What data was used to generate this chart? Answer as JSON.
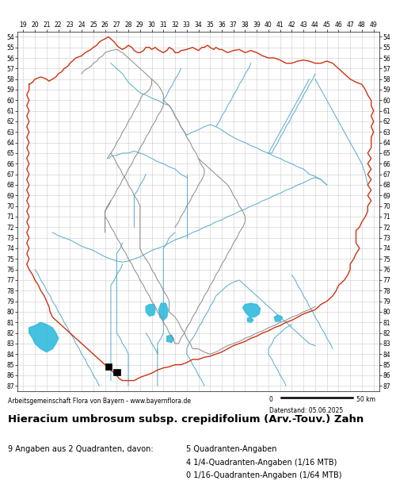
{
  "title": "Hieracium umbrosum subsp. crepidifolium (Arv.-Touv.) Zahn",
  "attribution": "Arbeitsgemeinschaft Flora von Bayern - www.bayernflora.de",
  "date_label": "Datenstand: 05.06.2025",
  "scale_label": "50 km",
  "stats_line1": "9 Angaben aus 2 Quadranten, davon:",
  "stats_line2": "5 Quadranten-Angaben",
  "stats_line3": "4 1/4-Quadranten-Angaben (1/16 MTB)",
  "stats_line4": "0 1/16-Quadranten-Angaben (1/64 MTB)",
  "x_min": 19,
  "x_max": 49,
  "y_min": 54,
  "y_max": 87,
  "grid_color": "#cccccc",
  "bg_color": "#ffffff",
  "border_color_outer": "#cc3311",
  "border_color_inner": "#888888",
  "river_color": "#55aacc",
  "lake_color": "#33bbdd",
  "occurrence_color": "#000000",
  "occurrence_points": [
    [
      26.3,
      85.2
    ],
    [
      27.0,
      85.7
    ]
  ],
  "figsize": [
    5.0,
    6.2
  ],
  "dpi": 100
}
